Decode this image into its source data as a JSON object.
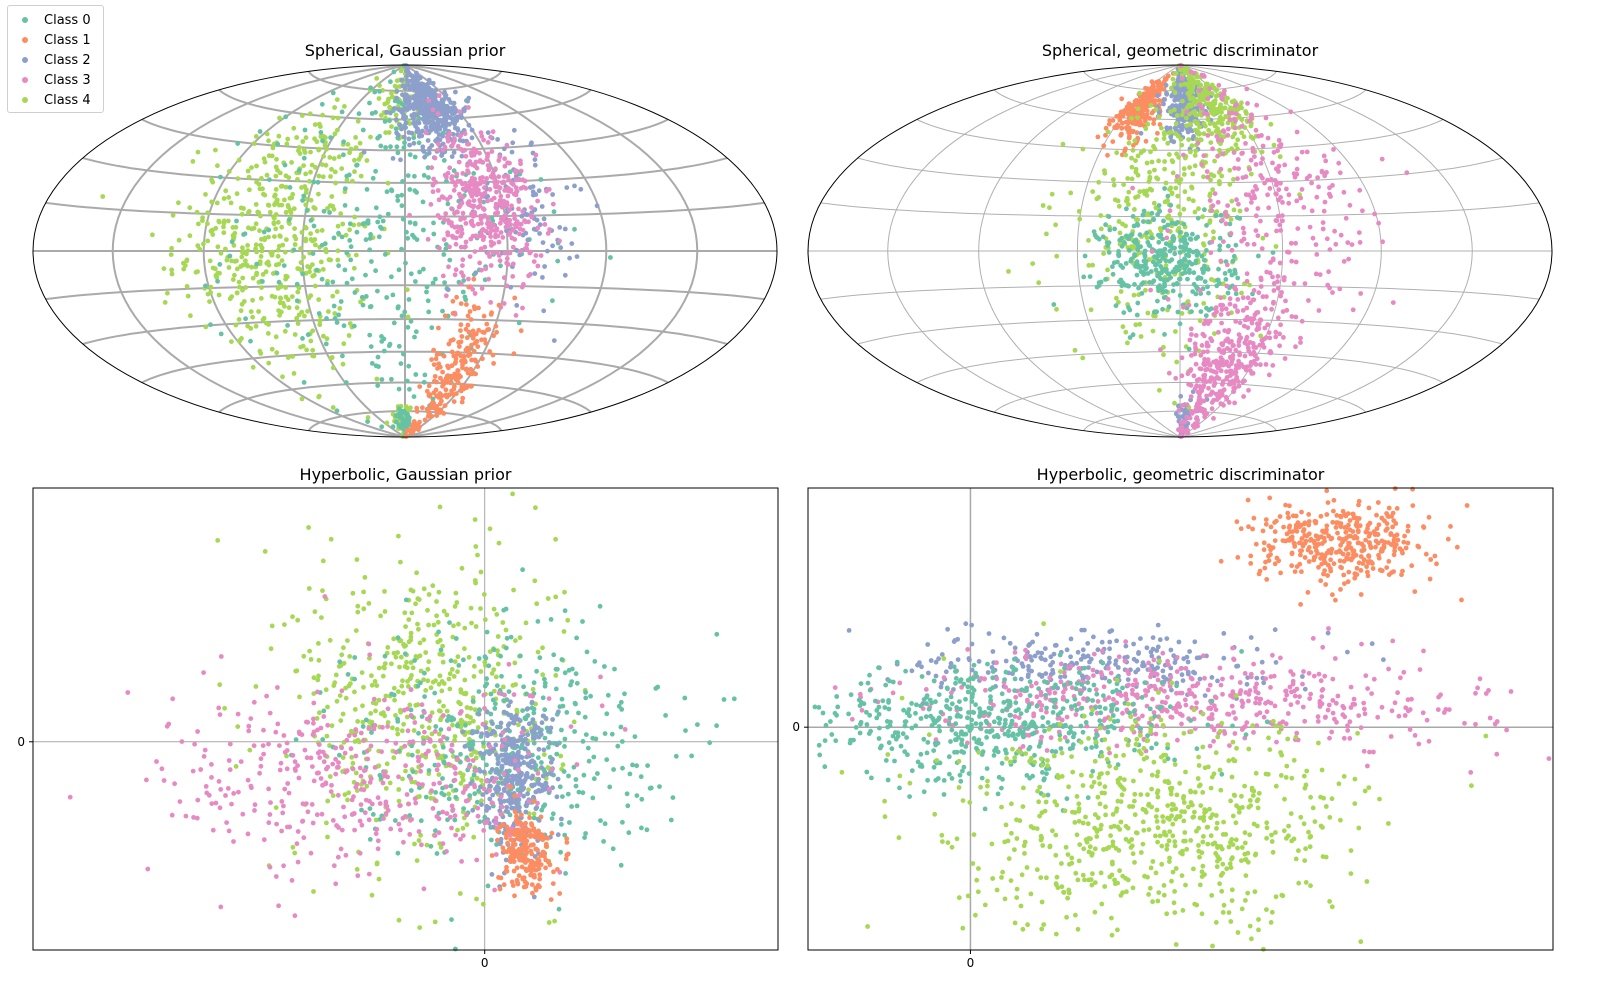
{
  "legend": {
    "placement": "top-left",
    "items": [
      {
        "label": "Class 0",
        "color": "#66c2a5"
      },
      {
        "label": "Class 1",
        "color": "#fc8d62"
      },
      {
        "label": "Class 2",
        "color": "#8da0cb"
      },
      {
        "label": "Class 3",
        "color": "#e78ac3"
      },
      {
        "label": "Class 4",
        "color": "#a6d854"
      }
    ]
  },
  "chart_data": [
    {
      "type": "scatter",
      "projection": "hammer",
      "title": "Spherical, Gaussian prior",
      "grid": true,
      "xlim": [
        -180,
        180
      ],
      "ylim": [
        -90,
        90
      ],
      "clusters": [
        {
          "class": 4,
          "center": [
            -60,
            5
          ],
          "spread": [
            22,
            30
          ],
          "count": 520
        },
        {
          "class": 4,
          "center": [
            -5,
            70
          ],
          "spread": [
            8,
            10
          ],
          "count": 70
        },
        {
          "class": 4,
          "center": [
            -5,
            -80
          ],
          "spread": [
            8,
            5
          ],
          "count": 40
        },
        {
          "class": 0,
          "center": [
            -10,
            5
          ],
          "spread": [
            35,
            40
          ],
          "count": 330
        },
        {
          "class": 0,
          "center": [
            0,
            -82
          ],
          "spread": [
            6,
            4
          ],
          "count": 60
        },
        {
          "class": 2,
          "center": [
            22,
            65
          ],
          "spread": [
            14,
            10
          ],
          "count": 420
        },
        {
          "class": 2,
          "center": [
            55,
            20
          ],
          "spread": [
            12,
            20
          ],
          "count": 110
        },
        {
          "class": 3,
          "center": [
            38,
            20
          ],
          "spread": [
            12,
            18
          ],
          "count": 420
        },
        {
          "class": 1,
          "center": [
            35,
            -55
          ],
          "spread": [
            10,
            18
          ],
          "count": 230
        }
      ]
    },
    {
      "type": "scatter",
      "projection": "hammer",
      "title": "Spherical, geometric discriminator",
      "grid": true,
      "xlim": [
        -180,
        180
      ],
      "ylim": [
        -90,
        90
      ],
      "clusters": [
        {
          "class": 1,
          "center": [
            -35,
            65
          ],
          "spread": [
            8,
            9
          ],
          "count": 250
        },
        {
          "class": 2,
          "center": [
            5,
            70
          ],
          "spread": [
            10,
            10
          ],
          "count": 300
        },
        {
          "class": 2,
          "center": [
            10,
            -80
          ],
          "spread": [
            8,
            6
          ],
          "count": 60
        },
        {
          "class": 4,
          "center": [
            30,
            65
          ],
          "spread": [
            16,
            12
          ],
          "count": 280
        },
        {
          "class": 4,
          "center": [
            -10,
            15
          ],
          "spread": [
            20,
            25
          ],
          "count": 340
        },
        {
          "class": 0,
          "center": [
            -5,
            -5
          ],
          "spread": [
            15,
            12
          ],
          "count": 340
        },
        {
          "class": 3,
          "center": [
            45,
            20
          ],
          "spread": [
            22,
            30
          ],
          "count": 300
        },
        {
          "class": 3,
          "center": [
            30,
            -50
          ],
          "spread": [
            14,
            18
          ],
          "count": 350
        }
      ]
    },
    {
      "type": "scatter",
      "title": "Hyperbolic, Gaussian prior",
      "grid": false,
      "xticks": [
        0
      ],
      "yticks": [
        0
      ],
      "xlim": [
        -7.7,
        5.0
      ],
      "ylim": [
        -3.2,
        3.9
      ],
      "clusters": [
        {
          "class": 4,
          "center": [
            -1.0,
            0.5
          ],
          "spread": [
            1.1,
            1.2
          ],
          "count": 560
        },
        {
          "class": 0,
          "center": [
            0.4,
            0.0
          ],
          "spread": [
            1.3,
            0.9
          ],
          "count": 420
        },
        {
          "class": 2,
          "center": [
            0.5,
            -0.5
          ],
          "spread": [
            0.35,
            0.55
          ],
          "count": 350
        },
        {
          "class": 3,
          "center": [
            -2.0,
            -0.6
          ],
          "spread": [
            1.7,
            0.75
          ],
          "count": 420
        },
        {
          "class": 1,
          "center": [
            0.7,
            -1.7
          ],
          "spread": [
            0.22,
            0.3
          ],
          "count": 220
        }
      ]
    },
    {
      "type": "scatter",
      "title": "Hyperbolic, geometric discriminator",
      "grid": false,
      "xticks": [
        0
      ],
      "yticks": [
        0
      ],
      "xlim": [
        -1.45,
        5.2
      ],
      "ylim": [
        -3.4,
        3.65
      ],
      "clusters": [
        {
          "class": 1,
          "center": [
            3.3,
            2.8
          ],
          "spread": [
            0.4,
            0.3
          ],
          "count": 380
        },
        {
          "class": 2,
          "center": [
            1.1,
            1.0
          ],
          "spread": [
            0.8,
            0.25
          ],
          "count": 250
        },
        {
          "class": 3,
          "center": [
            2.0,
            0.4
          ],
          "spread": [
            1.3,
            0.35
          ],
          "count": 520
        },
        {
          "class": 0,
          "center": [
            0.2,
            0.05
          ],
          "spread": [
            0.8,
            0.45
          ],
          "count": 520
        },
        {
          "class": 4,
          "center": [
            1.7,
            -1.5
          ],
          "spread": [
            0.9,
            0.8
          ],
          "count": 680
        }
      ]
    }
  ]
}
